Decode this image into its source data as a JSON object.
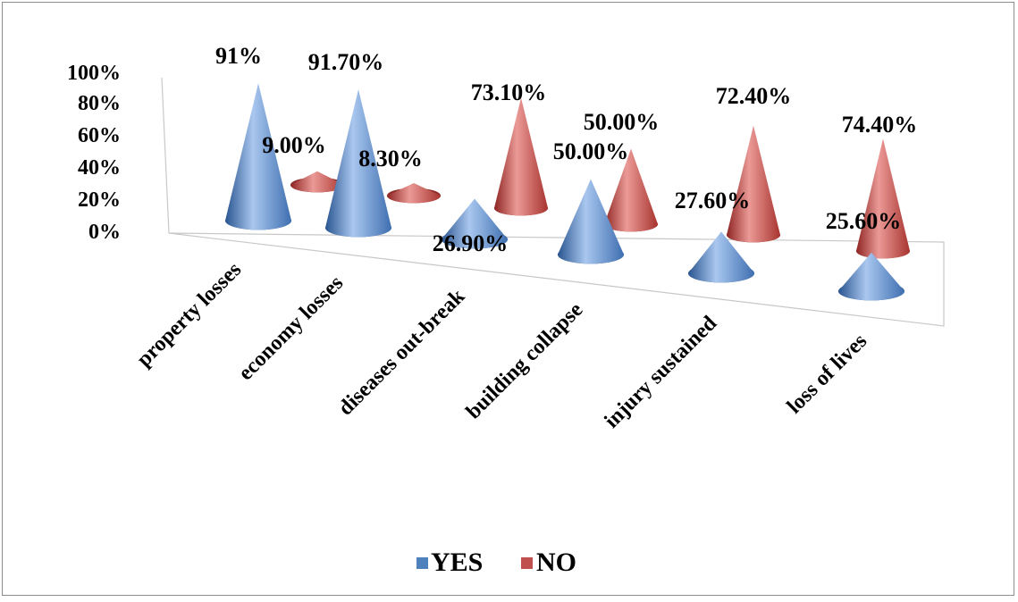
{
  "chart_data": {
    "type": "bar",
    "title": "",
    "xlabel": "",
    "ylabel": "",
    "ylim": [
      0,
      100
    ],
    "y_ticks": [
      "100%",
      "80%",
      "60%",
      "40%",
      "20%",
      "0%"
    ],
    "categories": [
      "property losses",
      "economy losses",
      "diseases out-break",
      "building collapse",
      "injury sustained",
      "loss of lives"
    ],
    "series": [
      {
        "name": "YES",
        "values": [
          91,
          91.7,
          26.9,
          50,
          27.6,
          25.6
        ],
        "labels": [
          "91%",
          "91.70%",
          "26.90%",
          "50.00%",
          "27.60%",
          "25.60%"
        ],
        "color": "#4f81bd"
      },
      {
        "name": "NO",
        "values": [
          9,
          8.3,
          73.1,
          50,
          72.4,
          74.4
        ],
        "labels": [
          "9.00%",
          "8.30%",
          "73.10%",
          "50.00%",
          "72.40%",
          "74.40%"
        ],
        "color": "#c0504d"
      }
    ],
    "legend_position": "bottom",
    "grid": false,
    "bar_shape": "3d-cone"
  }
}
